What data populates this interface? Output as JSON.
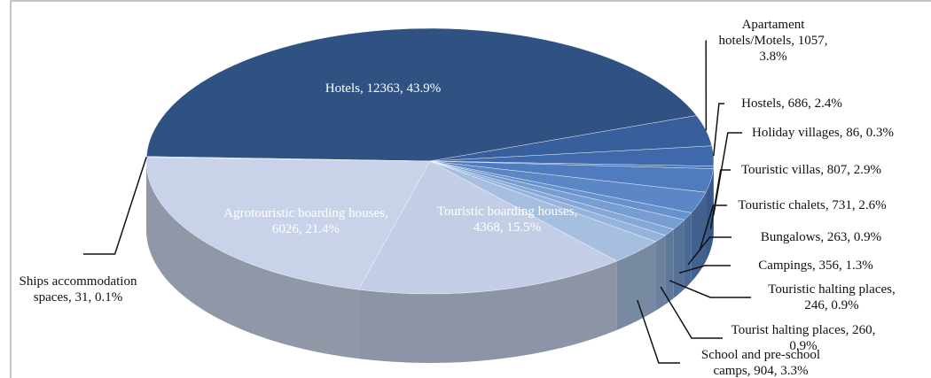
{
  "chart_data": {
    "type": "pie3d",
    "categories": [
      "Hotels, 12363, 43.9%",
      "Apartament hotels/Motels, 1057, 3.8%",
      "Hostels, 686, 2.4%",
      "Holiday villages, 86, 0.3%",
      "Touristic villas, 807, 2.9%",
      "Touristic chalets, 731, 2.6%",
      "Bungalows, 263, 0.9%",
      "Campings, 356, 1.3%",
      "Touristic halting places, 246, 0.9%",
      "Tourist halting places, 260, 0.9%",
      "School and pre-school camps, 904, 3.3%",
      "Touristic boarding houses, 4368, 15.5%",
      "Agrotouristic boarding houses, 6026, 21.4%",
      "Ships accommodation spaces, 31, 0.1%"
    ],
    "values": [
      12363,
      1057,
      686,
      86,
      807,
      731,
      263,
      356,
      246,
      260,
      904,
      4368,
      6026,
      31
    ],
    "colors": [
      "#2f5283",
      "#385f9c",
      "#3f69ab",
      "#4672b6",
      "#4f7cbf",
      "#5b87c7",
      "#6892cd",
      "#779dd2",
      "#86a8d7",
      "#95b3dc",
      "#a6bfe1",
      "#c3cee6",
      "#c8d2e8",
      "#b6c4df"
    ]
  }
}
